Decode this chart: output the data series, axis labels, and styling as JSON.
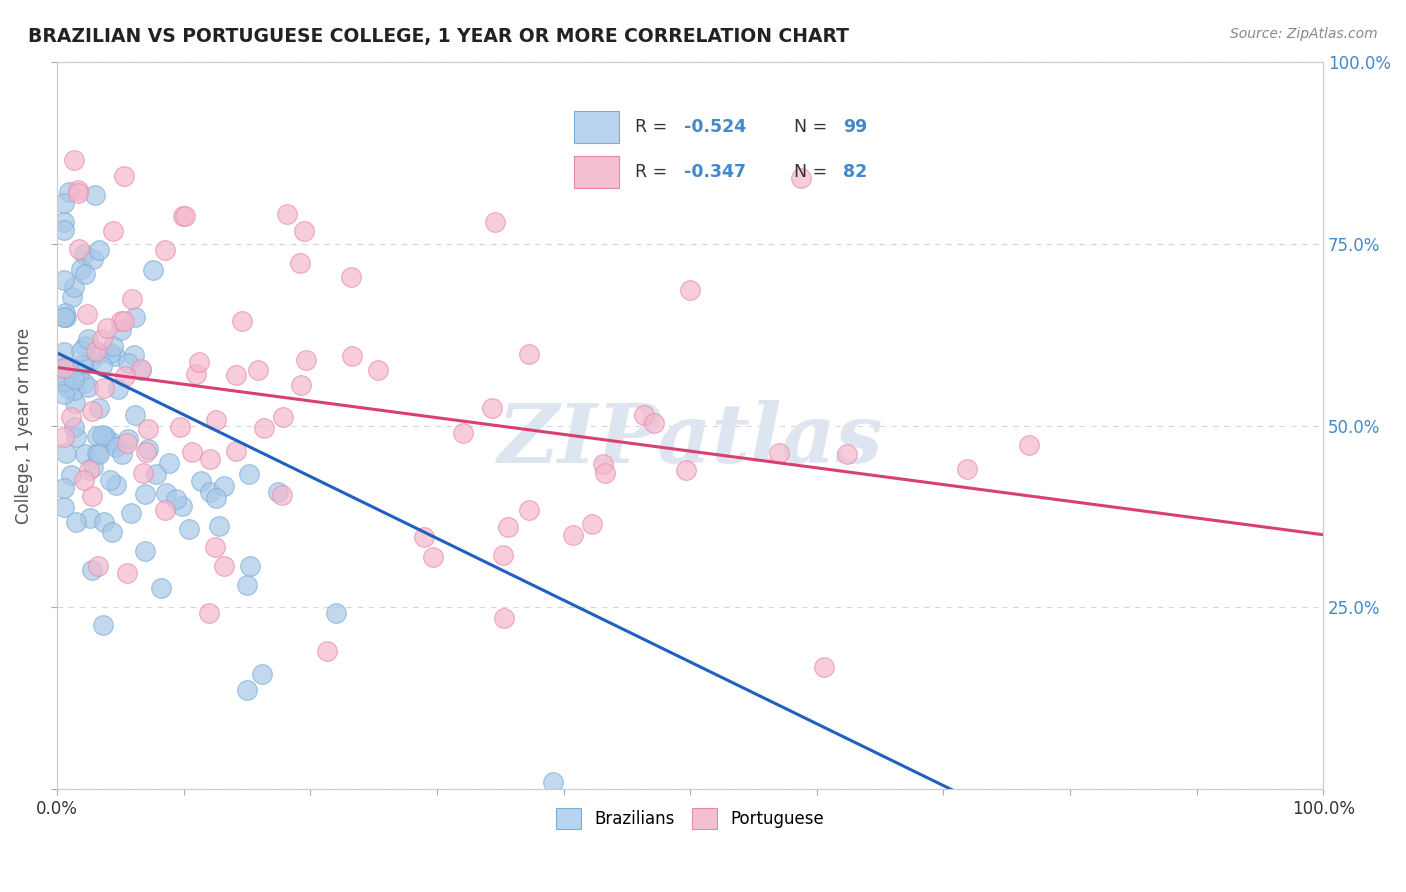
{
  "title": "BRAZILIAN VS PORTUGUESE COLLEGE, 1 YEAR OR MORE CORRELATION CHART",
  "source_text": "Source: ZipAtlas.com",
  "ylabel": "College, 1 year or more",
  "xlim": [
    0.0,
    1.0
  ],
  "ylim": [
    0.0,
    1.0
  ],
  "blue_R": -0.524,
  "blue_N": 99,
  "pink_R": -0.347,
  "pink_N": 82,
  "blue_dot_color": "#a8c8e8",
  "blue_edge_color": "#7aaed6",
  "pink_dot_color": "#f4b8cc",
  "pink_edge_color": "#e888a8",
  "blue_line_color": "#2060c0",
  "pink_line_color": "#d84070",
  "watermark_text": "ZIPatlas",
  "watermark_color": "#dde5f0",
  "background_color": "#ffffff",
  "grid_color": "#cccccc",
  "ytick_color": "#4488cc",
  "legend_blue_box": "#b8d4ee",
  "legend_pink_box": "#f4c0d0"
}
